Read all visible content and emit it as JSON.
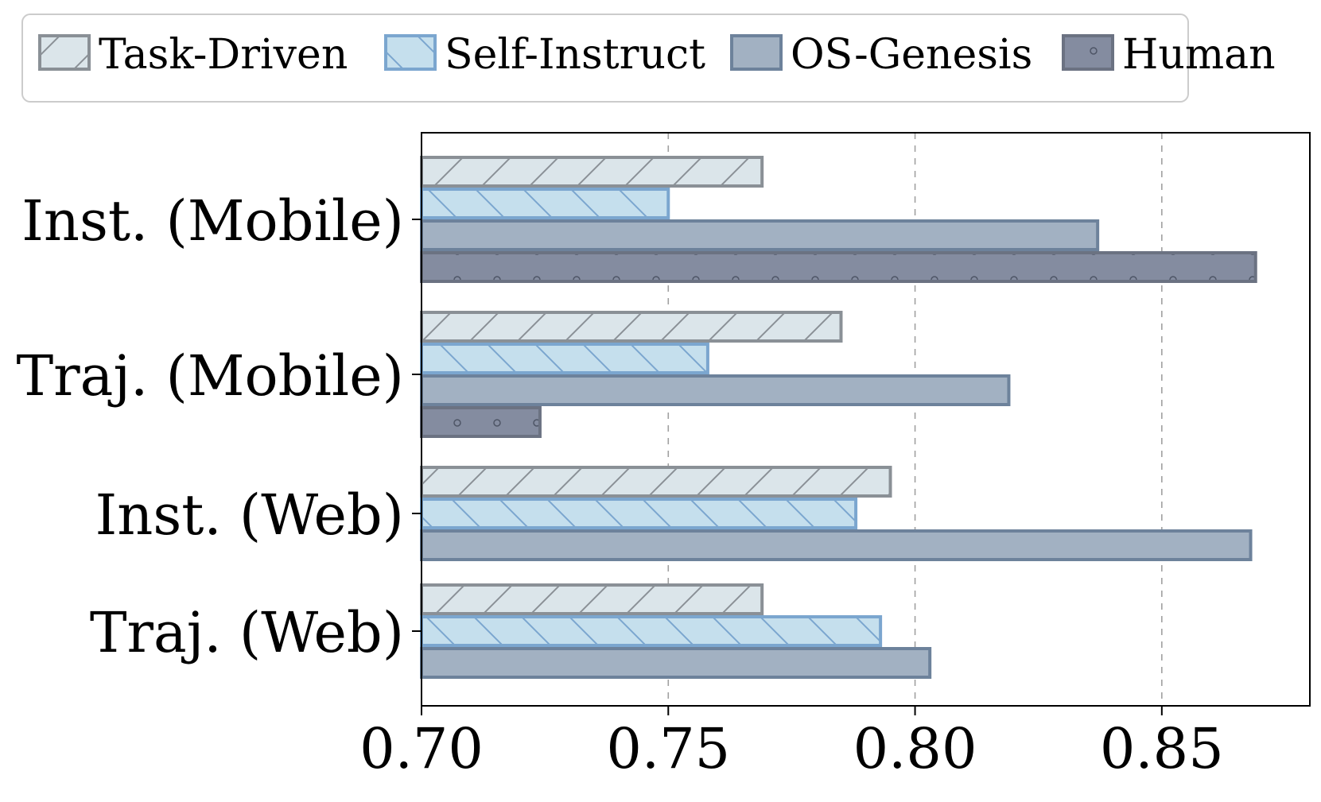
{
  "chart_data": {
    "type": "bar",
    "orientation": "horizontal",
    "categories": [
      "Inst. (Mobile)",
      "Traj. (Mobile)",
      "Inst. (Web)",
      "Traj. (Web)"
    ],
    "series": [
      {
        "name": "Task-Driven",
        "values": [
          0.769,
          0.785,
          0.795,
          0.769
        ],
        "fill": "#dbe5ea",
        "stroke": "#8a9096",
        "hatch": "forward-slash"
      },
      {
        "name": "Self-Instruct",
        "values": [
          0.75,
          0.758,
          0.788,
          0.793
        ],
        "fill": "#c5dfed",
        "stroke": "#7ba6cf",
        "hatch": "back-slash"
      },
      {
        "name": "OS-Genesis",
        "values": [
          0.837,
          0.819,
          0.868,
          0.803
        ],
        "fill": "#a2b1c2",
        "stroke": "#6d829b",
        "hatch": "none"
      },
      {
        "name": "Human",
        "values": [
          0.869,
          0.724,
          null,
          null
        ],
        "fill": "#848ca0",
        "stroke": "#6b7282",
        "hatch": "dots"
      }
    ],
    "xlim": [
      0.7,
      0.88
    ],
    "xticks": [
      "0.70",
      "0.75",
      "0.80",
      "0.85"
    ],
    "xtick_values": [
      0.7,
      0.75,
      0.8,
      0.85
    ],
    "grid": "x-dashed",
    "legend_position": "top",
    "title": "",
    "xlabel": "",
    "ylabel": ""
  }
}
